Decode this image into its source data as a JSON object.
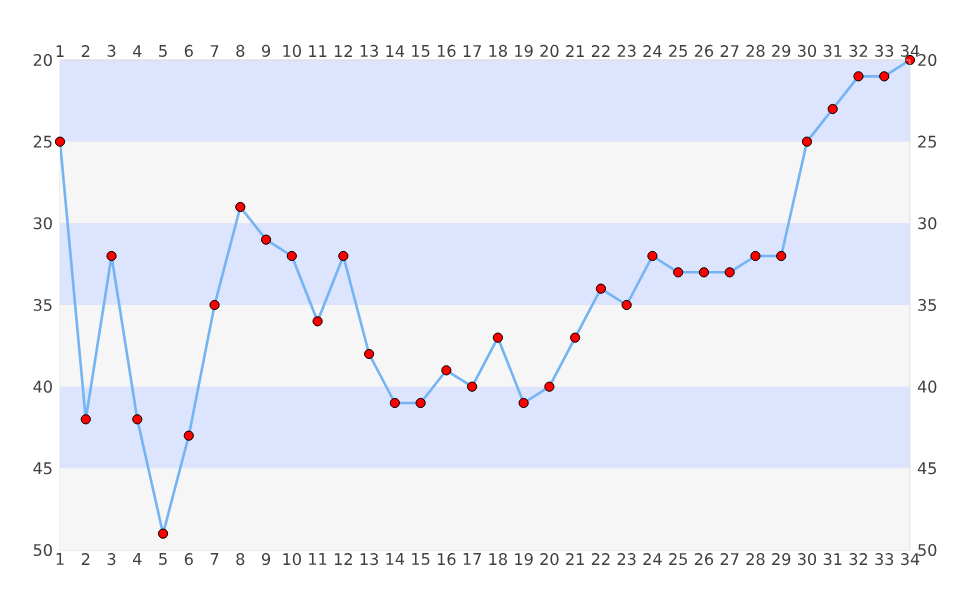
{
  "chart_data": {
    "type": "line",
    "x": [
      1,
      2,
      3,
      4,
      5,
      6,
      7,
      8,
      9,
      10,
      11,
      12,
      13,
      14,
      15,
      16,
      17,
      18,
      19,
      20,
      21,
      22,
      23,
      24,
      25,
      26,
      27,
      28,
      29,
      30,
      31,
      32,
      33,
      34
    ],
    "series": [
      {
        "color": "#74b4f2",
        "values": [
          25,
          42,
          32,
          42,
          49,
          43,
          35,
          29,
          31,
          32,
          36,
          32,
          38,
          41,
          41,
          39,
          40,
          37,
          41,
          40,
          37,
          34,
          35,
          32,
          33,
          33,
          33,
          32,
          32,
          25,
          23,
          21,
          21,
          20
        ]
      }
    ],
    "marker": "circle",
    "grid": "y",
    "xlim": [
      1,
      34
    ],
    "xticks": [
      1,
      2,
      3,
      4,
      5,
      6,
      7,
      8,
      9,
      10,
      11,
      12,
      13,
      14,
      15,
      16,
      17,
      18,
      19,
      20,
      21,
      22,
      23,
      24,
      25,
      26,
      27,
      28,
      29,
      30,
      31,
      32,
      33,
      34
    ],
    "x2lim": [
      1,
      34
    ],
    "x2ticks": [
      1,
      2,
      3,
      4,
      5,
      6,
      7,
      8,
      9,
      10,
      11,
      12,
      13,
      14,
      15,
      16,
      17,
      18,
      19,
      20,
      21,
      22,
      23,
      24,
      25,
      26,
      27,
      28,
      29,
      30,
      31,
      32,
      33,
      34
    ],
    "ylim": [
      50,
      20
    ],
    "yticks": [
      20,
      25,
      30,
      35,
      40,
      45,
      50
    ],
    "y2lim": [
      50,
      20
    ],
    "y2ticks": [
      20,
      25,
      30,
      35,
      40,
      45,
      50
    ],
    "bands": [
      {
        "axis": "y",
        "from": 20,
        "to": 25,
        "color": "#dde4fd"
      },
      {
        "axis": "y",
        "from": 25,
        "to": 30,
        "color": "#f6f6f6"
      },
      {
        "axis": "y",
        "from": 30,
        "to": 35,
        "color": "#dde4fd"
      },
      {
        "axis": "y",
        "from": 35,
        "to": 40,
        "color": "#f6f6f6"
      },
      {
        "axis": "y",
        "from": 40,
        "to": 45,
        "color": "#dde4fd"
      },
      {
        "axis": "y",
        "from": 45,
        "to": 50,
        "color": "#f6f6f6"
      }
    ]
  }
}
